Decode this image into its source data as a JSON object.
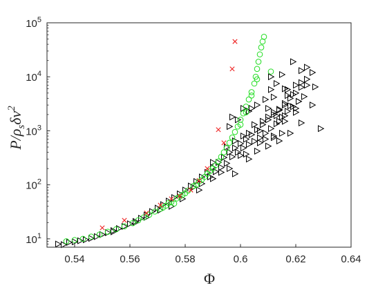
{
  "chart_data": {
    "type": "scatter",
    "xlabel": "Φ",
    "ylabel": "P/ρsδv²",
    "ylabel_parts": {
      "main": "P/ρ",
      "sub": "s",
      "mid": "δv",
      "sup": "2"
    },
    "xlim": [
      0.53,
      0.64
    ],
    "ylim": [
      7,
      100000
    ],
    "yscale": "log",
    "grid": false,
    "legend": "none",
    "xticks": [
      0.54,
      0.56,
      0.58,
      0.6,
      0.62,
      0.64
    ],
    "xtick_labels": [
      "0.54",
      "0.56",
      "0.58",
      "0.6",
      "0.62",
      "0.64"
    ],
    "yticks": [
      10,
      100,
      1000,
      10000,
      100000
    ],
    "ytick_labels": [
      {
        "base": "10",
        "exp": "1"
      },
      {
        "base": "10",
        "exp": "2"
      },
      {
        "base": "10",
        "exp": "3"
      },
      {
        "base": "10",
        "exp": "4"
      },
      {
        "base": "10",
        "exp": "5"
      }
    ],
    "series": [
      {
        "marker": "triangle-right",
        "color": "#000000",
        "points": [
          [
            0.534,
            8.0
          ],
          [
            0.536,
            7.8
          ],
          [
            0.538,
            8.6
          ],
          [
            0.54,
            8.8
          ],
          [
            0.542,
            9.2
          ],
          [
            0.544,
            9.6
          ],
          [
            0.546,
            10.2
          ],
          [
            0.548,
            11.0
          ],
          [
            0.55,
            12.0
          ],
          [
            0.552,
            13.0
          ],
          [
            0.554,
            14.2
          ],
          [
            0.556,
            15.5
          ],
          [
            0.558,
            17.0
          ],
          [
            0.56,
            19.0
          ],
          [
            0.562,
            21.0
          ],
          [
            0.564,
            24.0
          ],
          [
            0.566,
            27.5
          ],
          [
            0.568,
            32.0
          ],
          [
            0.57,
            37.0
          ],
          [
            0.572,
            43.0
          ],
          [
            0.574,
            50.0
          ],
          [
            0.576,
            58.0
          ],
          [
            0.578,
            68.0
          ],
          [
            0.58,
            80.0
          ],
          [
            0.582,
            95.0
          ],
          [
            0.584,
            115.0
          ],
          [
            0.586,
            140.0
          ],
          [
            0.588,
            170.0
          ],
          [
            0.59,
            210.0
          ],
          [
            0.592,
            260.0
          ],
          [
            0.594,
            320.0
          ],
          [
            0.596,
            400.0
          ],
          [
            0.598,
            480.0
          ],
          [
            0.6,
            580.0
          ],
          [
            0.602,
            700.0
          ],
          [
            0.604,
            850.0
          ],
          [
            0.606,
            1050.0
          ],
          [
            0.608,
            1300.0
          ],
          [
            0.61,
            1600.0
          ],
          [
            0.612,
            2000.0
          ],
          [
            0.614,
            2500.0
          ],
          [
            0.616,
            3200.0
          ],
          [
            0.618,
            4000.0
          ],
          [
            0.62,
            5000.0
          ],
          [
            0.622,
            6400.0
          ],
          [
            0.624,
            7000.0
          ],
          [
            0.626,
            3000.0
          ],
          [
            0.554,
            13.5
          ],
          [
            0.562,
            20.0
          ],
          [
            0.566,
            25.0
          ],
          [
            0.571,
            34.0
          ],
          [
            0.575,
            40.0
          ],
          [
            0.579,
            55.0
          ],
          [
            0.583,
            90.0
          ],
          [
            0.586,
            105.0
          ],
          [
            0.589,
            140.0
          ],
          [
            0.591,
            175.0
          ],
          [
            0.593,
            210.0
          ],
          [
            0.595,
            250.0
          ],
          [
            0.597,
            330.0
          ],
          [
            0.599,
            400.0
          ],
          [
            0.601,
            480.0
          ],
          [
            0.603,
            560.0
          ],
          [
            0.605,
            640.0
          ],
          [
            0.607,
            740.0
          ],
          [
            0.609,
            900.0
          ],
          [
            0.611,
            1100.0
          ],
          [
            0.613,
            1350.0
          ],
          [
            0.615,
            1800.0
          ],
          [
            0.617,
            2300.0
          ],
          [
            0.619,
            2800.0
          ],
          [
            0.621,
            3500.0
          ],
          [
            0.623,
            4300.0
          ],
          [
            0.585,
            80.0
          ],
          [
            0.59,
            130.0
          ],
          [
            0.596,
            200.0
          ],
          [
            0.598,
            160.0
          ],
          [
            0.603,
            300.0
          ],
          [
            0.606,
            420.0
          ],
          [
            0.61,
            520.0
          ],
          [
            0.614,
            650.0
          ],
          [
            0.618,
            900.0
          ],
          [
            0.622,
            1400.0
          ],
          [
            0.6,
            350.0
          ],
          [
            0.612,
            750.0
          ],
          [
            0.616,
            1500.0
          ],
          [
            0.62,
            2200.0
          ],
          [
            0.607,
            1000.0
          ],
          [
            0.613,
            1900.0
          ],
          [
            0.617,
            5800.0
          ],
          [
            0.62,
            7000.0
          ],
          [
            0.624,
            9000.0
          ],
          [
            0.622,
            13000.0
          ],
          [
            0.624,
            15000.0
          ],
          [
            0.626,
            12000.0
          ],
          [
            0.619,
            19000.0
          ],
          [
            0.615,
            11000.0
          ],
          [
            0.611,
            10000.0
          ],
          [
            0.627,
            6500.0
          ],
          [
            0.629,
            1100.0
          ],
          [
            0.622,
            7800.0
          ],
          [
            0.62,
            2600.0
          ],
          [
            0.616,
            3000.0
          ],
          [
            0.618,
            2900.0
          ],
          [
            0.621,
            3500.0
          ],
          [
            0.609,
            3800.0
          ],
          [
            0.606,
            3000.0
          ],
          [
            0.604,
            2600.0
          ],
          [
            0.603,
            2300.0
          ],
          [
            0.601,
            2600.0
          ],
          [
            0.599,
            1600.0
          ],
          [
            0.597,
            1800.0
          ],
          [
            0.596,
            1200.0
          ],
          [
            0.61,
            2600.0
          ],
          [
            0.612,
            2200.0
          ],
          [
            0.614,
            1500.0
          ],
          [
            0.616,
            1900.0
          ],
          [
            0.612,
            4200.0
          ],
          [
            0.617,
            4500.0
          ],
          [
            0.619,
            4700.0
          ],
          [
            0.611,
            5800.0
          ],
          [
            0.614,
            2400.0
          ],
          [
            0.61,
            1800.0
          ],
          [
            0.608,
            1500.0
          ],
          [
            0.605,
            1300.0
          ],
          [
            0.603,
            900.0
          ],
          [
            0.601,
            800.0
          ],
          [
            0.598,
            650.0
          ],
          [
            0.595,
            500.0
          ],
          [
            0.59,
            260.0
          ],
          [
            0.593,
            170.0
          ],
          [
            0.609,
            700.0
          ],
          [
            0.612,
            800.0
          ],
          [
            0.615,
            900.0
          ],
          [
            0.607,
            600.0
          ],
          [
            0.602,
            370.0
          ],
          [
            0.613,
            7500.0
          ],
          [
            0.616,
            6000.0
          ]
        ]
      },
      {
        "marker": "circle",
        "color": "#22dd22",
        "points": [
          [
            0.537,
            9.0
          ],
          [
            0.54,
            9.5
          ],
          [
            0.543,
            10.0
          ],
          [
            0.546,
            11.0
          ],
          [
            0.549,
            12.0
          ],
          [
            0.552,
            13.5
          ],
          [
            0.555,
            15.0
          ],
          [
            0.558,
            17.0
          ],
          [
            0.561,
            19.5
          ],
          [
            0.563,
            22.0
          ],
          [
            0.565,
            25.0
          ],
          [
            0.567,
            28.0
          ],
          [
            0.569,
            32.0
          ],
          [
            0.571,
            36.0
          ],
          [
            0.573,
            41.0
          ],
          [
            0.575,
            48.0
          ],
          [
            0.577,
            56.0
          ],
          [
            0.579,
            65.0
          ],
          [
            0.581,
            78.0
          ],
          [
            0.583,
            95.0
          ],
          [
            0.585,
            115.0
          ],
          [
            0.587,
            140.0
          ],
          [
            0.589,
            180.0
          ],
          [
            0.591,
            230.0
          ],
          [
            0.592,
            270.0
          ],
          [
            0.593,
            330.0
          ],
          [
            0.594,
            400.0
          ],
          [
            0.595,
            480.0
          ],
          [
            0.596,
            600.0
          ],
          [
            0.597,
            750.0
          ],
          [
            0.598,
            950.0
          ],
          [
            0.599,
            1200.0
          ],
          [
            0.6,
            1600.0
          ],
          [
            0.601,
            2100.0
          ],
          [
            0.602,
            2800.0
          ],
          [
            0.603,
            3800.0
          ],
          [
            0.604,
            5200.0
          ],
          [
            0.605,
            7500.0
          ],
          [
            0.6055,
            10000.0
          ],
          [
            0.606,
            14000.0
          ],
          [
            0.6065,
            19000.0
          ],
          [
            0.607,
            26000.0
          ],
          [
            0.6075,
            35000.0
          ],
          [
            0.608,
            45000.0
          ],
          [
            0.6085,
            55000.0
          ],
          [
            0.6,
            1300.0
          ],
          [
            0.602,
            2200.0
          ],
          [
            0.604,
            4500.0
          ],
          [
            0.606,
            9000.0
          ],
          [
            0.611,
            12500.0
          ],
          [
            0.576,
            45.0
          ],
          [
            0.572,
            38.0
          ],
          [
            0.574,
            46.0
          ],
          [
            0.578,
            60.0
          ],
          [
            0.58,
            70.0
          ],
          [
            0.584,
            100.0
          ],
          [
            0.586,
            125.0
          ],
          [
            0.588,
            160.0
          ],
          [
            0.59,
            200.0
          ]
        ]
      },
      {
        "marker": "x",
        "color": "#ee2222",
        "points": [
          [
            0.55,
            16.0
          ],
          [
            0.558,
            22.0
          ],
          [
            0.566,
            30.0
          ],
          [
            0.571,
            42.0
          ],
          [
            0.575,
            55.0
          ],
          [
            0.578,
            62.0
          ],
          [
            0.582,
            80.0
          ],
          [
            0.585,
            120.0
          ],
          [
            0.588,
            200.0
          ],
          [
            0.592,
            1050.0
          ],
          [
            0.594,
            600.0
          ],
          [
            0.597,
            14000.0
          ],
          [
            0.598,
            45000.0
          ]
        ]
      }
    ]
  }
}
